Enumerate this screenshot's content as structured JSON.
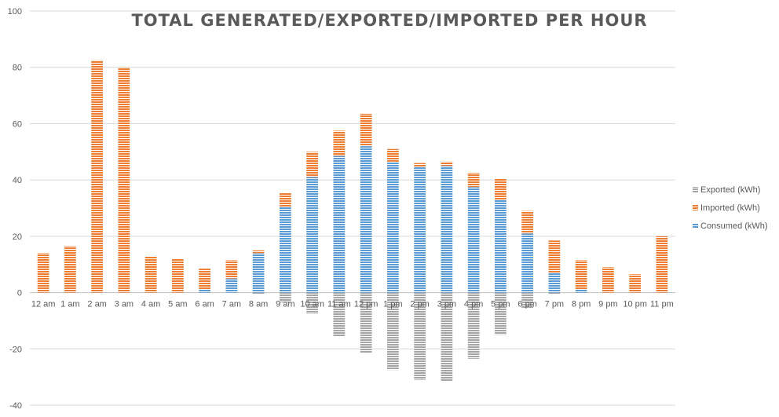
{
  "chart_data": {
    "type": "bar",
    "stacked": true,
    "title": "TOTAL GENERATED/EXPORTED/IMPORTED PER HOUR",
    "xlabel": "",
    "ylabel": "",
    "ylim": [
      -40,
      100
    ],
    "yticks": [
      -40,
      -20,
      0,
      20,
      40,
      60,
      80,
      100
    ],
    "grid": true,
    "legend_position": "right",
    "categories": [
      "12 am",
      "1 am",
      "2 am",
      "3 am",
      "4 am",
      "5 am",
      "6 am",
      "7 am",
      "8 am",
      "9 am",
      "10 am",
      "11 am",
      "12 pm",
      "1 pm",
      "2 pm",
      "3 pm",
      "4 pm",
      "5 pm",
      "6 pm",
      "7 pm",
      "8 pm",
      "9 pm",
      "10 pm",
      "11 pm"
    ],
    "series": [
      {
        "name": "Consumed (kWh)",
        "color": "#5b9bd5",
        "values": [
          0,
          0,
          0,
          0,
          0,
          0,
          1,
          5,
          14,
          30.5,
          41,
          48.5,
          52,
          46.5,
          44.5,
          45,
          37.5,
          33,
          21,
          7,
          1,
          0,
          0,
          0
        ]
      },
      {
        "name": "Imported (kWh)",
        "color": "#ed7d31",
        "values": [
          14,
          16.5,
          82.5,
          80,
          13,
          12,
          7.5,
          6.5,
          1,
          5,
          9,
          9,
          11.5,
          4.5,
          1.5,
          1.5,
          5,
          7.5,
          8,
          11.5,
          10.5,
          9,
          6.5,
          20
        ]
      },
      {
        "name": "Exported (kWh)",
        "color": "#a5a5a5",
        "values": [
          0,
          0,
          0,
          0,
          0,
          0,
          0,
          0,
          -0.5,
          -3.5,
          -7.5,
          -15.5,
          -21.5,
          -27.5,
          -31,
          -31.5,
          -23.5,
          -15,
          -5.5,
          -0.5,
          0,
          0,
          0,
          0
        ]
      }
    ],
    "legend_order": [
      "Exported (kWh)",
      "Imported (kWh)",
      "Consumed (kWh)"
    ]
  }
}
